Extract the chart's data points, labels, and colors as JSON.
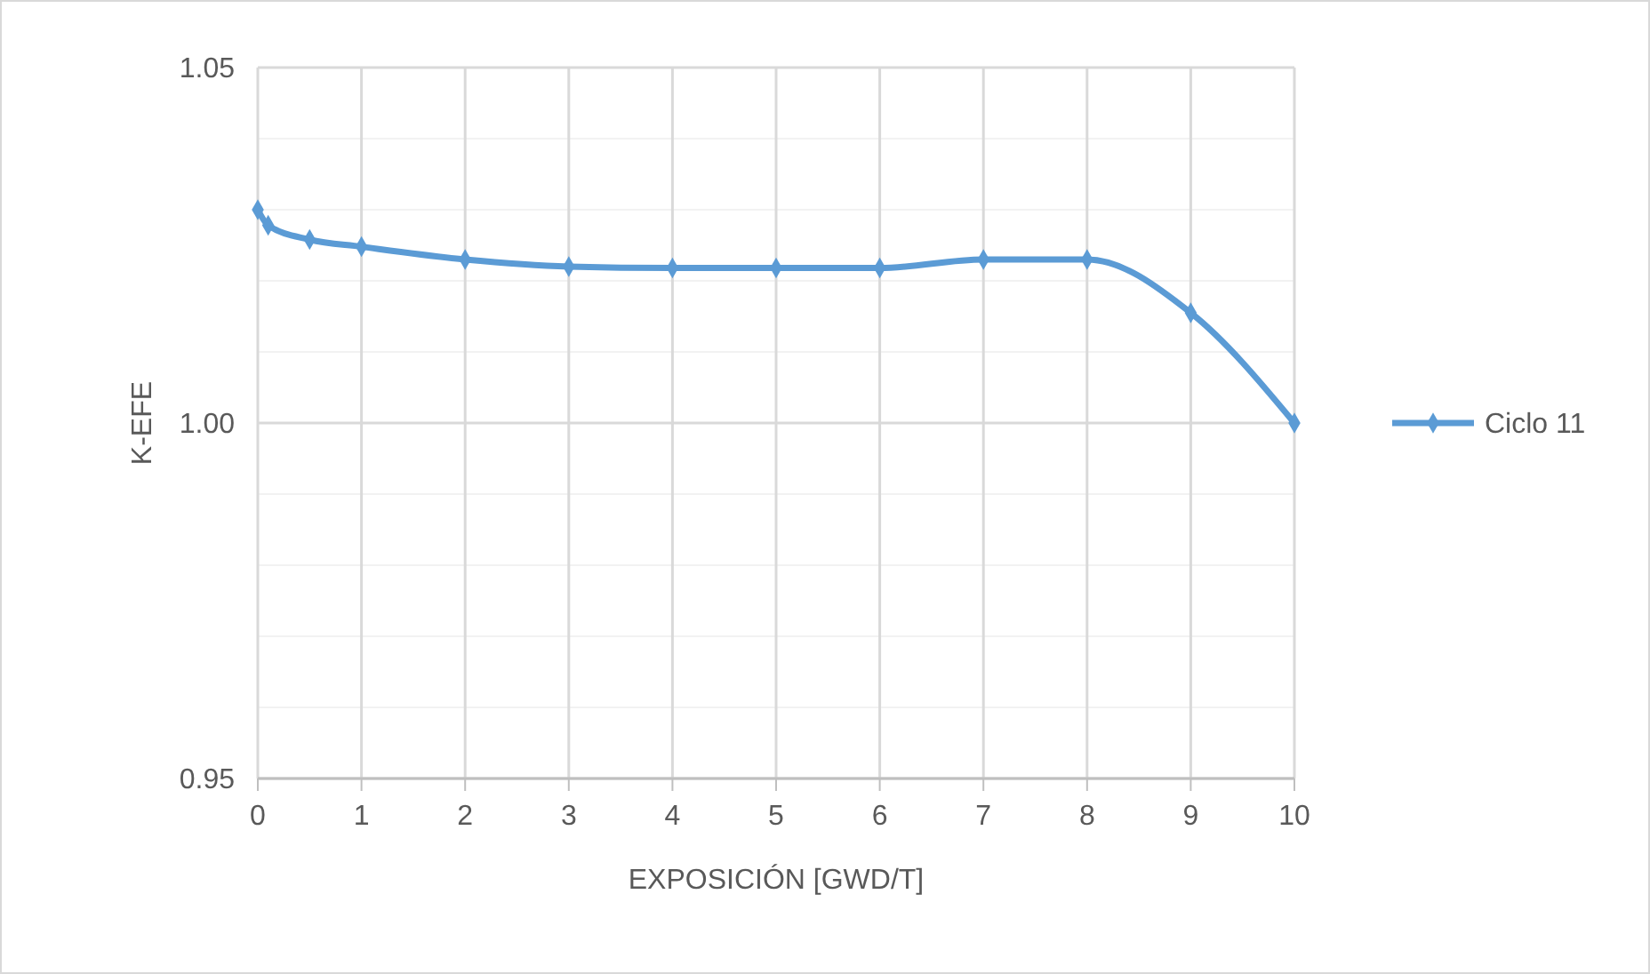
{
  "chart_data": {
    "type": "line",
    "xlabel": "EXPOSICIÓN [GWD/T]",
    "ylabel": "K-EFE",
    "x": [
      0,
      0.1,
      0.5,
      1,
      2,
      3,
      4,
      5,
      6,
      7,
      8,
      9,
      10
    ],
    "series": [
      {
        "name": "Ciclo 11",
        "color": "#5b9bd5",
        "values": [
          1.03,
          1.0278,
          1.0258,
          1.0248,
          1.023,
          1.022,
          1.0218,
          1.0218,
          1.0218,
          1.023,
          1.023,
          1.0155,
          1.0
        ]
      }
    ],
    "xlim": [
      0,
      10
    ],
    "xticks": [
      0,
      1,
      2,
      3,
      4,
      5,
      6,
      7,
      8,
      9,
      10
    ],
    "ylim": [
      0.95,
      1.05
    ],
    "yticks": [
      {
        "value": 0.95,
        "label": "0.95"
      },
      {
        "value": 0.96,
        "label": null
      },
      {
        "value": 0.97,
        "label": null
      },
      {
        "value": 0.98,
        "label": null
      },
      {
        "value": 0.99,
        "label": null
      },
      {
        "value": 1.0,
        "label": "1.00"
      },
      {
        "value": 1.01,
        "label": null
      },
      {
        "value": 1.02,
        "label": null
      },
      {
        "value": 1.03,
        "label": null
      },
      {
        "value": 1.04,
        "label": null
      },
      {
        "value": 1.05,
        "label": "1.05"
      }
    ],
    "grid": true,
    "legend": "right",
    "marker": "diamond",
    "line_style": "solid"
  }
}
